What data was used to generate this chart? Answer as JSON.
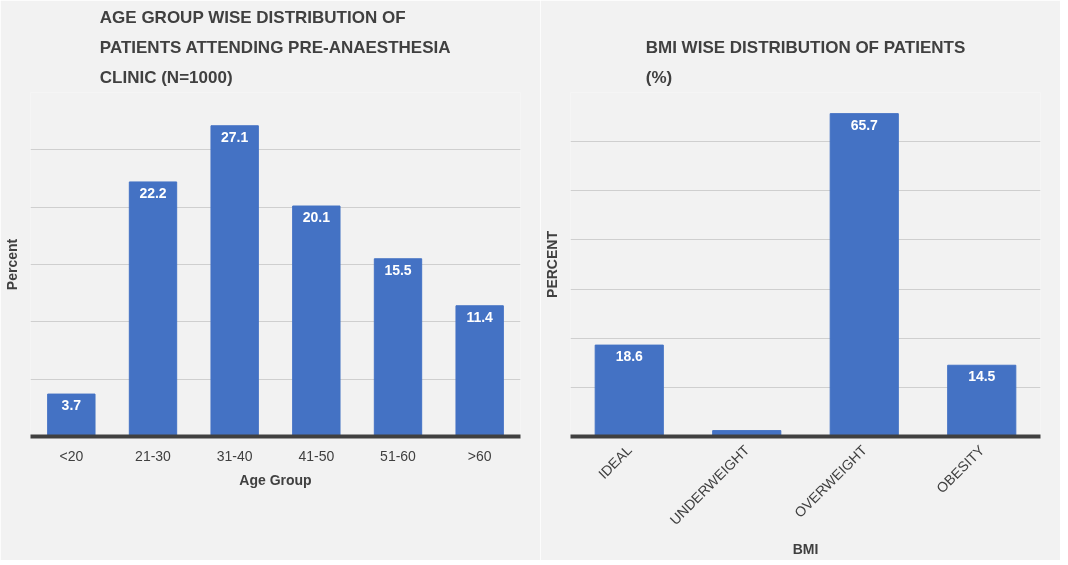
{
  "chart_data": [
    {
      "type": "bar",
      "title": "AGE GROUP WISE DISTRIBUTION OF PATIENTS ATTENDING PRE-ANAESTHESIA CLINIC (N=1000)",
      "xlabel": "Age Group",
      "ylabel": "Percent",
      "categories": [
        "<20",
        "21-30",
        "31-40",
        "41-50",
        "51-60",
        ">60"
      ],
      "values": [
        3.7,
        22.2,
        27.1,
        20.1,
        15.5,
        11.4
      ],
      "color": "#4472c4",
      "ylim": [
        0,
        30
      ],
      "yticks": [
        {
          "value": 0,
          "label": null
        },
        {
          "value": 5,
          "label": null
        },
        {
          "value": 10,
          "label": null
        },
        {
          "value": 15,
          "label": null
        },
        {
          "value": 20,
          "label": null
        },
        {
          "value": 25,
          "label": null
        },
        {
          "value": 30,
          "label": null
        }
      ],
      "tick_labels": "x",
      "grid": "y",
      "data_labels": true
    },
    {
      "type": "bar",
      "title": "BMI WISE DISTRIBUTION OF PATIENTS (%)",
      "xlabel": "BMI",
      "ylabel": "PERCENT",
      "categories": [
        "IDEAL",
        "UNDERWEIGHT",
        "OVERWEIGHT",
        "OBESITY"
      ],
      "values": [
        18.6,
        1.2,
        65.7,
        14.5
      ],
      "color": "#4472c4",
      "value_labels": [
        "18.6",
        null,
        "65.7",
        "14.5"
      ],
      "ylim": [
        0,
        70
      ],
      "yticks": [
        {
          "value": 0,
          "label": null
        },
        {
          "value": 10,
          "label": null
        },
        {
          "value": 20,
          "label": null
        },
        {
          "value": 30,
          "label": null
        },
        {
          "value": 40,
          "label": null
        },
        {
          "value": 50,
          "label": null
        },
        {
          "value": 60,
          "label": null
        },
        {
          "value": 70,
          "label": null
        }
      ],
      "tick_labels": "x",
      "grid": "y"
    }
  ]
}
